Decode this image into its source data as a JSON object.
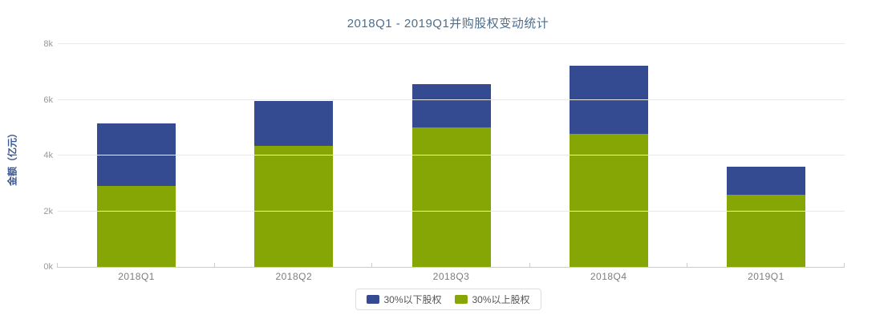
{
  "title": "2018Q1 - 2019Q1并购股权变动统计",
  "chart_data": {
    "type": "bar",
    "stacked": true,
    "title": "2018Q1 - 2019Q1并购股权变动统计",
    "ylabel": "金额（亿元）",
    "xlabel": "",
    "ylim": [
      0,
      8000
    ],
    "grid": true,
    "legend_position": "bottom",
    "categories": [
      "2018Q1",
      "2018Q2",
      "2018Q3",
      "2018Q4",
      "2019Q1"
    ],
    "series": [
      {
        "name": "30%以下股权",
        "color": "#344a91",
        "stack_position": "top",
        "values": [
          2250,
          1600,
          1550,
          2450,
          1010
        ]
      },
      {
        "name": "30%以上股权",
        "color": "#85a604",
        "stack_position": "bottom",
        "values": [
          2900,
          4350,
          5000,
          4780,
          2590
        ]
      }
    ],
    "totals": [
      5150,
      5950,
      6550,
      7230,
      3600
    ],
    "yticks": [
      {
        "value": 0,
        "label": "0k"
      },
      {
        "value": 2000,
        "label": "2k"
      },
      {
        "value": 4000,
        "label": "4k"
      },
      {
        "value": 6000,
        "label": "6k"
      },
      {
        "value": 8000,
        "label": "8k"
      }
    ]
  },
  "colors": {
    "background": "#ffffff",
    "title": "#4e6e8c",
    "gridline": "#e8e8e8",
    "axis_line": "#cccccc",
    "y_tick_label": "#999999",
    "x_tick_label": "#7d7d7d",
    "y_axis_title": "#3a5795",
    "legend_border": "#dddddd",
    "legend_text": "#555555"
  }
}
